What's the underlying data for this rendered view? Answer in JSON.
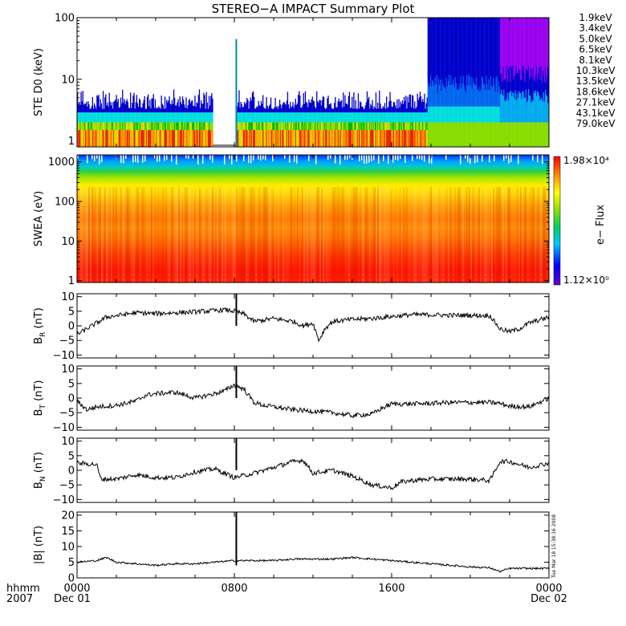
{
  "chart_data": {
    "type": "line",
    "title": "STEREO−A IMPACT Summary Plot",
    "x_axis": {
      "ticks": [
        {
          "hour": 0,
          "label": "0000"
        },
        {
          "hour": 8,
          "label": "0800"
        },
        {
          "hour": 16,
          "label": "1600"
        },
        {
          "hour": 24,
          "label": "0000"
        }
      ],
      "date_labels": {
        "start": "Dec 01",
        "end": "Dec 02"
      },
      "corner_labels": {
        "format": "hhmm",
        "year": "2007"
      },
      "range_hours": [
        0,
        24
      ]
    },
    "timestamp": "Tue Mar 18 15:38:16 2008",
    "panels": [
      {
        "id": "ste",
        "ylabel": "STE D0 (keV)",
        "yscale": "log",
        "ylim": [
          0.8,
          100
        ],
        "yticks": [
          {
            "v": 1,
            "label": "1"
          },
          {
            "v": 10,
            "label": "10"
          },
          {
            "v": 100,
            "label": "100"
          }
        ],
        "legend": [
          {
            "label": "1.9keV",
            "color": "#9900ee"
          },
          {
            "label": "3.4keV",
            "color": "#0000cc"
          },
          {
            "label": "5.0keV",
            "color": "#0066ee"
          },
          {
            "label": "6.5keV",
            "color": "#00aaee"
          },
          {
            "label": "8.1keV",
            "color": "#00dddd"
          },
          {
            "label": "10.3keV",
            "color": "#00cc44"
          },
          {
            "label": "13.5keV",
            "color": "#00bb00"
          },
          {
            "label": "18.6keV",
            "color": "#88dd00"
          },
          {
            "label": "27.1keV",
            "color": "#dddd00"
          },
          {
            "label": "43.1keV",
            "color": "#ff8800"
          },
          {
            "label": "79.0keV",
            "color": "#ee2200"
          }
        ],
        "data_gap_hours": [
          6.9,
          8.1
        ],
        "spike_hour": 8.1
      },
      {
        "id": "swea",
        "type": "heatmap",
        "ylabel": "SWEA (eV)",
        "yscale": "log",
        "ylim": [
          0.9,
          1500
        ],
        "yticks": [
          {
            "v": 1,
            "label": "1"
          },
          {
            "v": 10,
            "label": "10"
          },
          {
            "v": 100,
            "label": "100"
          },
          {
            "v": 1000,
            "label": "1000"
          }
        ],
        "colorbar": {
          "label": "e− Flux",
          "max": "1.98×10⁴",
          "min": "1.12×10⁰"
        }
      },
      {
        "id": "br",
        "ylabel": "BR (nT)",
        "ylim": [
          -11,
          11
        ],
        "yticks": [
          {
            "v": 10,
            "label": "10"
          },
          {
            "v": 5,
            "label": "5"
          },
          {
            "v": 0,
            "label": "0"
          },
          {
            "v": -5,
            "label": "−5"
          },
          {
            "v": -10,
            "label": "−10"
          }
        ],
        "series": {
          "x": [
            0,
            0.5,
            1,
            1.5,
            2,
            3,
            4,
            5,
            6,
            7,
            7.5,
            8,
            8.5,
            9,
            10,
            11,
            11.5,
            12,
            12.3,
            12.6,
            13,
            14,
            15,
            16,
            17,
            18,
            19,
            20,
            21,
            21.5,
            22,
            22.5,
            23,
            23.5,
            24
          ],
          "y": [
            -3,
            -1,
            1,
            3,
            3.5,
            4.5,
            4.2,
            4.5,
            4.8,
            5.2,
            5.5,
            5,
            4,
            1.5,
            2.5,
            1.5,
            0,
            1,
            -5,
            -1,
            1.5,
            2.2,
            2.5,
            3.2,
            3.8,
            3.8,
            3.6,
            3.6,
            3.5,
            -1,
            -2,
            -1,
            1,
            2,
            3
          ]
        }
      },
      {
        "id": "bt",
        "ylabel": "BT (nT)",
        "ylim": [
          -11,
          11
        ],
        "yticks": [
          {
            "v": 10,
            "label": "10"
          },
          {
            "v": 5,
            "label": "5"
          },
          {
            "v": 0,
            "label": "0"
          },
          {
            "v": -5,
            "label": "−5"
          },
          {
            "v": -10,
            "label": "−10"
          }
        ],
        "series": {
          "x": [
            0,
            0.5,
            1,
            2,
            3,
            3.5,
            4,
            5,
            6,
            7,
            7.5,
            8,
            8.5,
            9,
            9.5,
            10,
            11,
            12,
            13,
            14,
            15,
            15.5,
            16,
            17,
            18,
            19,
            20,
            21,
            21.5,
            22,
            23,
            23.5,
            24
          ],
          "y": [
            -1,
            -4,
            -3,
            -2.5,
            -1,
            1,
            1.5,
            2,
            0,
            1.5,
            2.5,
            4.5,
            3,
            -1.5,
            -2.5,
            -3,
            -4,
            -4.5,
            -5,
            -6,
            -5.5,
            -3.5,
            -2,
            -2,
            -1.8,
            -1.5,
            -1.5,
            -1.5,
            -1.8,
            -2.8,
            -3,
            -1.5,
            0
          ]
        }
      },
      {
        "id": "bn",
        "ylabel": "BN (nT)",
        "ylim": [
          -11,
          11
        ],
        "yticks": [
          {
            "v": 10,
            "label": "10"
          },
          {
            "v": 5,
            "label": "5"
          },
          {
            "v": 0,
            "label": "0"
          },
          {
            "v": -5,
            "label": "−5"
          },
          {
            "v": -10,
            "label": "−10"
          }
        ],
        "series": {
          "x": [
            0,
            1,
            1.2,
            2,
            3,
            4,
            5,
            6,
            7,
            7.5,
            8,
            9,
            10,
            11,
            11.5,
            12,
            13,
            14,
            15,
            16,
            16.5,
            17,
            18,
            19,
            20,
            21,
            21.5,
            22,
            23,
            24
          ],
          "y": [
            2.5,
            2,
            -3,
            -3,
            -1.5,
            -2.5,
            -2.5,
            -0.5,
            0.5,
            -1,
            -2.5,
            -1,
            1,
            3,
            3.5,
            -1,
            0,
            -2,
            -5,
            -6,
            -4,
            -3.5,
            -3,
            -3,
            -3,
            -3.5,
            3,
            3,
            1,
            2.5
          ]
        }
      },
      {
        "id": "bmag",
        "ylabel": "|B| (nT)",
        "ylim": [
          0,
          21
        ],
        "yticks": [
          {
            "v": 20,
            "label": "20"
          },
          {
            "v": 15,
            "label": "15"
          },
          {
            "v": 10,
            "label": "10"
          },
          {
            "v": 5,
            "label": "5"
          },
          {
            "v": 0,
            "label": "0"
          }
        ],
        "series": {
          "x": [
            0,
            1,
            1.5,
            2,
            3,
            4,
            5,
            6,
            7,
            8,
            9,
            10,
            11,
            12,
            13,
            14,
            15,
            16,
            17,
            18,
            19,
            20,
            21,
            21.5,
            22,
            23,
            24
          ],
          "y": [
            5,
            5.5,
            6.5,
            5,
            4.5,
            4,
            4.5,
            4.5,
            5,
            5.5,
            5.5,
            5.5,
            6,
            6,
            6,
            6.5,
            6,
            5.5,
            5,
            4.5,
            4,
            3.5,
            3.2,
            2,
            3,
            3,
            3
          ]
        }
      }
    ]
  }
}
